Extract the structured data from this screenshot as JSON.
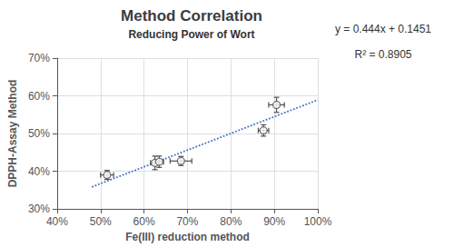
{
  "chart_data": {
    "type": "scatter",
    "title": "Method Correlation",
    "subtitle": "Reducing Power of Wort",
    "xlabel": "Fe(III) reduction method",
    "ylabel": "DPPH-Assay Method",
    "annotations": [
      "y = 0.444x + 0.1451",
      "R² = 0.8905"
    ],
    "x": [
      0.515,
      0.625,
      0.635,
      0.685,
      0.875,
      0.905
    ],
    "values": [
      0.39,
      0.422,
      0.425,
      0.427,
      0.508,
      0.576
    ],
    "xerr": [
      0.015,
      0.01,
      0.01,
      0.025,
      0.012,
      0.018
    ],
    "yerr": [
      0.012,
      0.018,
      0.015,
      0.012,
      0.015,
      0.02
    ],
    "color": "#505050",
    "marker": "circle",
    "trendline": {
      "x": [
        0.48,
        1.0
      ],
      "values": [
        0.35822,
        0.5891
      ],
      "color": "#4472C4",
      "line_style": "dotted"
    },
    "xlim": [
      0.4,
      1.0
    ],
    "ylim": [
      0.3,
      0.7
    ],
    "xticks": [
      {
        "value": 0.4,
        "label": "40%"
      },
      {
        "value": 0.5,
        "label": "50%"
      },
      {
        "value": 0.6,
        "label": "60%"
      },
      {
        "value": 0.7,
        "label": "70%"
      },
      {
        "value": 0.8,
        "label": "80%"
      },
      {
        "value": 0.9,
        "label": "90%"
      },
      {
        "value": 1.0,
        "label": "100%"
      }
    ],
    "yticks": [
      {
        "value": 0.3,
        "label": "30%"
      },
      {
        "value": 0.4,
        "label": "40%"
      },
      {
        "value": 0.5,
        "label": "50%"
      },
      {
        "value": 0.6,
        "label": "60%"
      },
      {
        "value": 0.7,
        "label": "70%"
      }
    ],
    "grid": true
  }
}
